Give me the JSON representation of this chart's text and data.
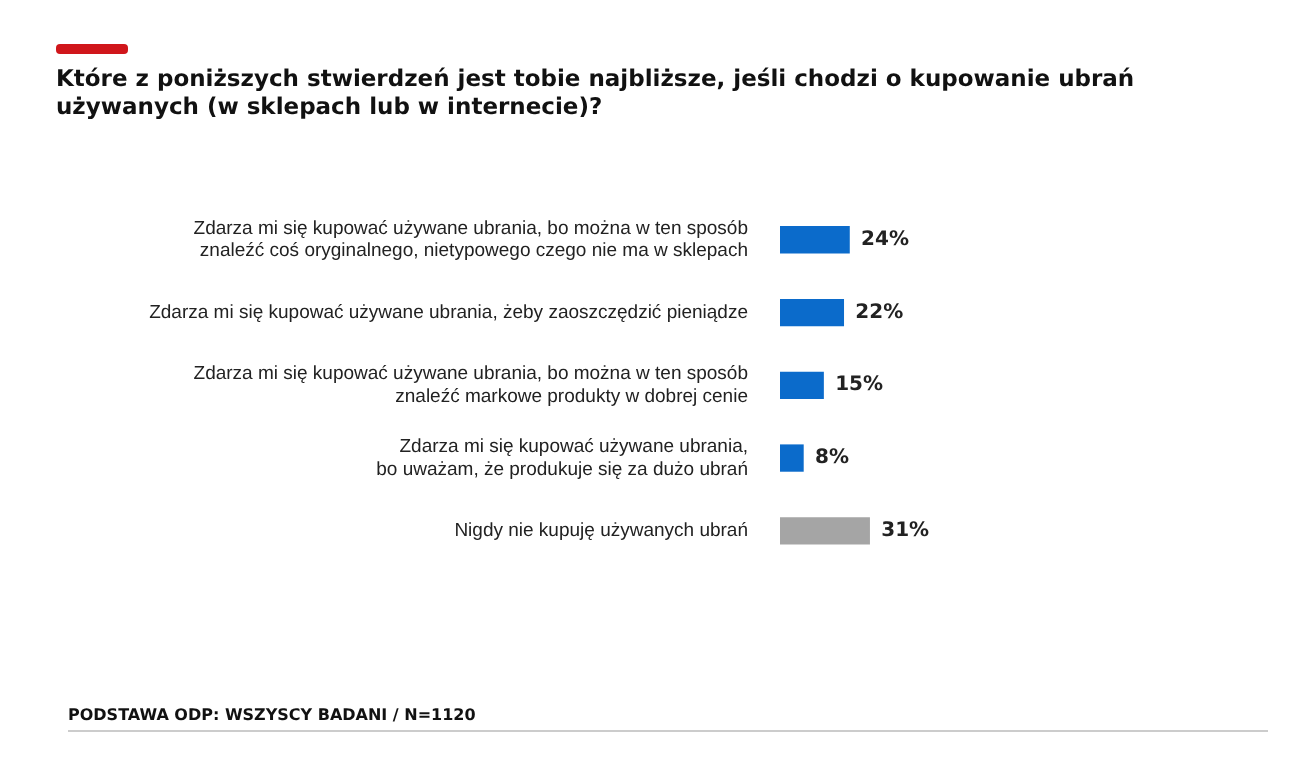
{
  "chart_data": {
    "type": "bar",
    "orientation": "horizontal",
    "title": "Które z poniższych stwierdzeń jest tobie najbliższe, jeśli chodzi o kupowanie ubrań używanych (w sklepach lub w internecie)?",
    "categories": [
      "Zdarza mi się kupować używane ubrania, bo można w ten sposób\nznaleźć coś oryginalnego, nietypowego czego nie ma w sklepach",
      "Zdarza mi się kupować używane ubrania, żeby zaoszczędzić pieniądze",
      "Zdarza mi się kupować używane ubrania, bo można w ten sposób\nznaleźć markowe produkty w dobrej cenie",
      "Zdarza mi się kupować używane ubrania,\nbo uważam, że produkuje się za dużo ubrań",
      "Nigdy nie kupuję używanych ubrań"
    ],
    "values": [
      24,
      22,
      15,
      8,
      31
    ],
    "value_labels": [
      "24%",
      "22%",
      "15%",
      "8%",
      "31%"
    ],
    "colors": [
      "#0b6bcb",
      "#0b6bcb",
      "#0b6bcb",
      "#0b6bcb",
      "#a5a5a5"
    ],
    "annotations": [
      "PODSTAWA ODP: WSZYSCY BADANI / N=1120"
    ]
  }
}
